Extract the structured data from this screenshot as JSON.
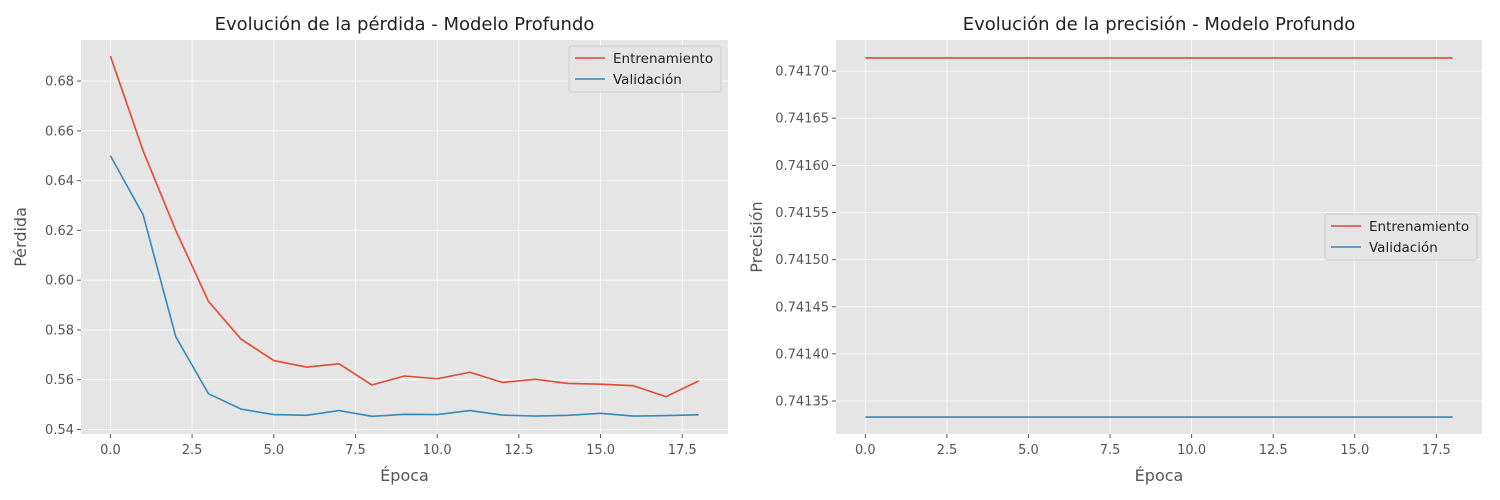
{
  "chart_data": [
    {
      "type": "line",
      "title": "Evolución de la pérdida - Modelo Profundo",
      "xlabel": "Época",
      "ylabel": "Pérdida",
      "xlim": [
        -0.9,
        18.9
      ],
      "ylim": [
        0.5382,
        0.6965
      ],
      "xticks": [
        0.0,
        2.5,
        5.0,
        7.5,
        10.0,
        12.5,
        15.0,
        17.5
      ],
      "xtick_labels": [
        "0.0",
        "2.5",
        "5.0",
        "7.5",
        "10.0",
        "12.5",
        "15.0",
        "17.5"
      ],
      "yticks": [
        0.54,
        0.56,
        0.58,
        0.6,
        0.62,
        0.64,
        0.66,
        0.68
      ],
      "ytick_labels": [
        "0.54",
        "0.56",
        "0.58",
        "0.60",
        "0.62",
        "0.64",
        "0.66",
        "0.68"
      ],
      "grid": true,
      "legend_position": "top-right",
      "x": [
        0,
        1,
        2,
        3,
        4,
        5,
        6,
        7,
        8,
        9,
        10,
        11,
        12,
        13,
        14,
        15,
        16,
        17,
        18
      ],
      "series": [
        {
          "name": "Entrenamiento",
          "color": "#E24A33",
          "values": [
            0.69,
            0.652,
            0.62,
            0.5915,
            0.5763,
            0.5677,
            0.5651,
            0.5664,
            0.5579,
            0.5615,
            0.5604,
            0.563,
            0.5589,
            0.5602,
            0.5585,
            0.5582,
            0.5576,
            0.5532,
            0.5595
          ]
        },
        {
          "name": "Validación",
          "color": "#348ABD",
          "values": [
            0.65,
            0.6263,
            0.5773,
            0.5544,
            0.5482,
            0.546,
            0.5457,
            0.5476,
            0.5453,
            0.5461,
            0.546,
            0.5476,
            0.5458,
            0.5454,
            0.5457,
            0.5465,
            0.5454,
            0.5456,
            0.5459
          ]
        }
      ]
    },
    {
      "type": "line",
      "title": "Evolución de la precisión - Modelo Profundo",
      "xlabel": "Época",
      "ylabel": "Precisión",
      "xlim": [
        -0.9,
        18.9
      ],
      "ylim": [
        0.741315,
        0.741733
      ],
      "xticks": [
        0.0,
        2.5,
        5.0,
        7.5,
        10.0,
        12.5,
        15.0,
        17.5
      ],
      "xtick_labels": [
        "0.0",
        "2.5",
        "5.0",
        "7.5",
        "10.0",
        "12.5",
        "15.0",
        "17.5"
      ],
      "yticks": [
        0.74135,
        0.7414,
        0.74145,
        0.7415,
        0.74155,
        0.7416,
        0.74165,
        0.7417
      ],
      "ytick_labels": [
        "0.74135",
        "0.74140",
        "0.74145",
        "0.74150",
        "0.74155",
        "0.74160",
        "0.74165",
        "0.74170"
      ],
      "grid": true,
      "legend_position": "center-right",
      "x": [
        0,
        1,
        2,
        3,
        4,
        5,
        6,
        7,
        8,
        9,
        10,
        11,
        12,
        13,
        14,
        15,
        16,
        17,
        18
      ],
      "series": [
        {
          "name": "Entrenamiento",
          "color": "#E24A33",
          "values": [
            0.741714,
            0.741714,
            0.741714,
            0.741714,
            0.741714,
            0.741714,
            0.741714,
            0.741714,
            0.741714,
            0.741714,
            0.741714,
            0.741714,
            0.741714,
            0.741714,
            0.741714,
            0.741714,
            0.741714,
            0.741714,
            0.741714
          ]
        },
        {
          "name": "Validación",
          "color": "#348ABD",
          "values": [
            0.741333,
            0.741333,
            0.741333,
            0.741333,
            0.741333,
            0.741333,
            0.741333,
            0.741333,
            0.741333,
            0.741333,
            0.741333,
            0.741333,
            0.741333,
            0.741333,
            0.741333,
            0.741333,
            0.741333,
            0.741333,
            0.741333
          ]
        }
      ]
    }
  ]
}
